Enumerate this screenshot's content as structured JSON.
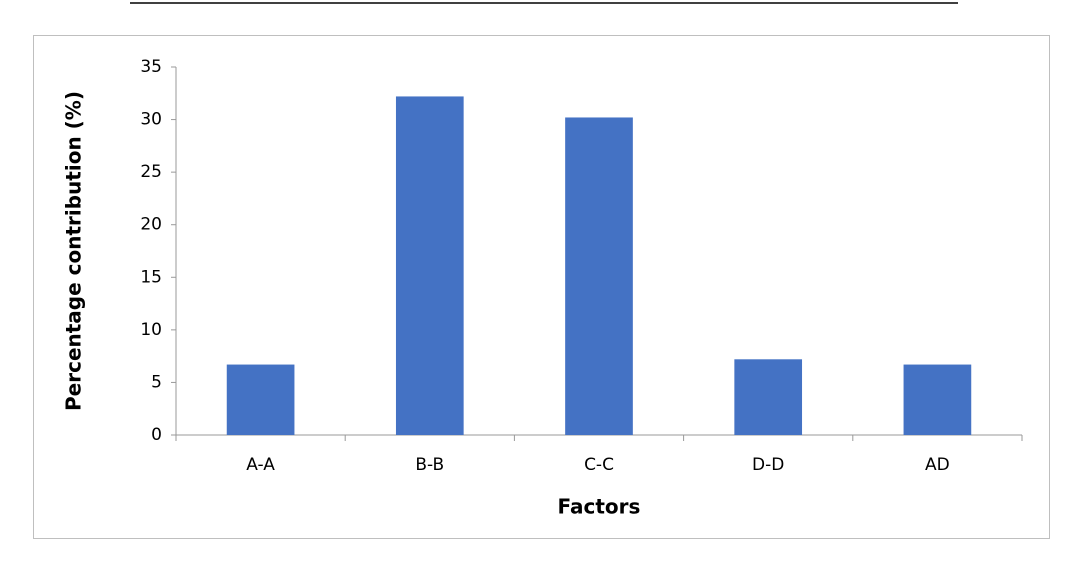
{
  "chart_data": {
    "type": "bar",
    "x_label": "Factors",
    "y_label": "Percentage contribution (%)",
    "categories": [
      "A-A",
      "B-B",
      "C-C",
      "D-D",
      "AD"
    ],
    "values": [
      6.7,
      32.2,
      30.2,
      7.2,
      6.7
    ],
    "color": "#4472c4",
    "ylim": [
      0,
      35
    ],
    "yticks": [
      0,
      5,
      10,
      15,
      20,
      25,
      30,
      35
    ],
    "grid": false
  }
}
